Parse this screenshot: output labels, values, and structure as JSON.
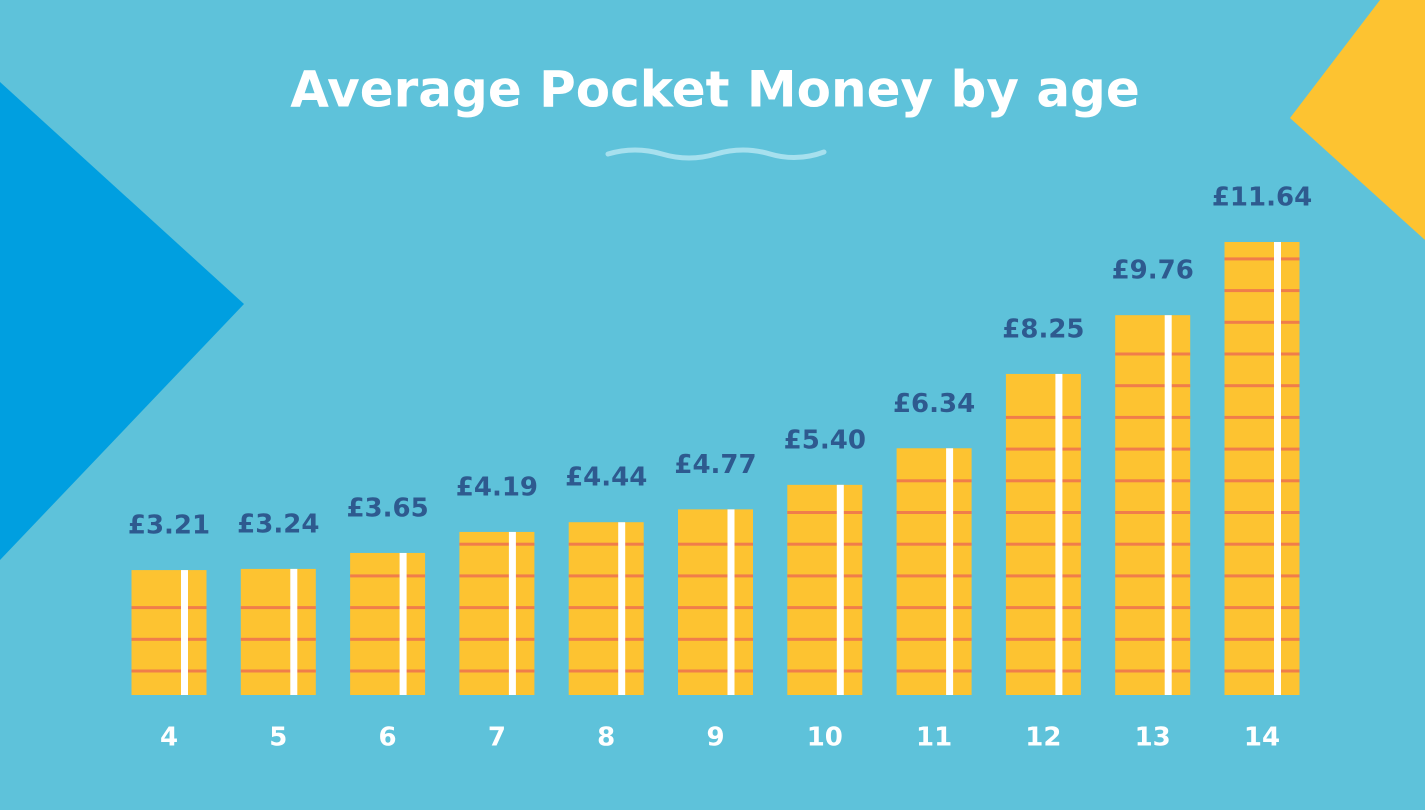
{
  "chart_data": {
    "type": "bar",
    "title": "Average Pocket Money by age",
    "categories": [
      "4",
      "5",
      "6",
      "7",
      "8",
      "9",
      "10",
      "11",
      "12",
      "13",
      "14"
    ],
    "values": [
      3.21,
      3.24,
      3.65,
      4.19,
      4.44,
      4.77,
      5.4,
      6.34,
      8.25,
      9.76,
      11.64
    ],
    "value_labels": [
      "£3.21",
      "£3.24",
      "£3.65",
      "£4.19",
      "£4.44",
      "£4.77",
      "£5.40",
      "£6.34",
      "£8.25",
      "£9.76",
      "£11.64"
    ],
    "color": "#fdc331",
    "ylim": [
      0,
      12
    ]
  }
}
